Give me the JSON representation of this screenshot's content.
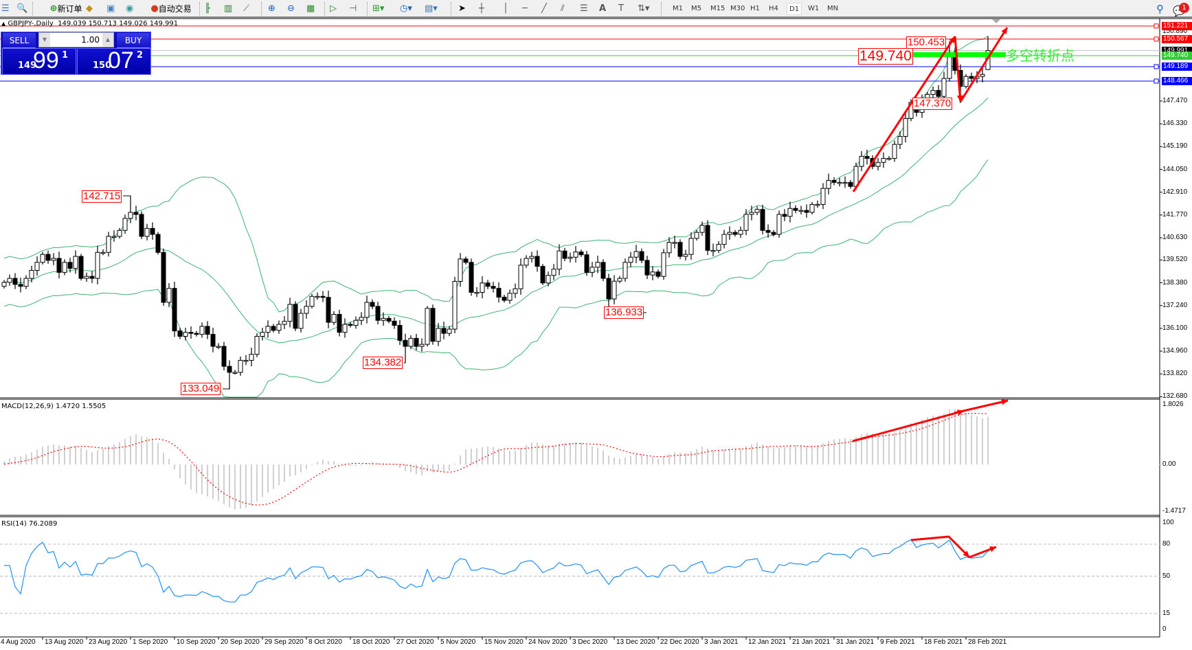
{
  "toolbar": {
    "new_order_label": "新订单",
    "auto_trading_label": "自动交易",
    "timeframes": [
      "M1",
      "M5",
      "M15",
      "M30",
      "H1",
      "H4",
      "D1",
      "W1",
      "MN"
    ],
    "active_timeframe": "D1",
    "notification_count": "1"
  },
  "chart": {
    "symbol_title": "GBPJPY-,Daily",
    "ohlc_text": "149.039 150.713 149.026 149.991"
  },
  "trade_panel": {
    "sell_label": "SELL",
    "buy_label": "BUY",
    "lot": "1.00",
    "sell_price": {
      "prefix": "149",
      "big": "99",
      "sup": "1"
    },
    "buy_price": {
      "prefix": "150",
      "big": "07",
      "sup": "2"
    }
  },
  "price_axis": {
    "ticks": [
      "147.470",
      "146.330",
      "145.190",
      "144.050",
      "142.910",
      "141.770",
      "140.630",
      "139.520",
      "138.380",
      "137.240",
      "136.100",
      "134.960",
      "133.820",
      "132.680"
    ],
    "top_tick": "150.890",
    "levels": [
      {
        "value": "151.221",
        "color": "#ff0000",
        "line": "#ff0000"
      },
      {
        "value": "150.567",
        "color": "#ff0000",
        "line": "#ff0000"
      },
      {
        "value": "149.991",
        "color": "#000000",
        "line": "#c0c0c0"
      },
      {
        "value": "149.740",
        "color": "#32cd32",
        "line": "#32cd32"
      },
      {
        "value": "149.189",
        "color": "#0000ff",
        "line": "#0000ff"
      },
      {
        "value": "148.466",
        "color": "#0000ff",
        "line": "#0000ff"
      }
    ]
  },
  "annotations": {
    "labels": [
      "142.715",
      "133.049",
      "134.382",
      "136.933",
      "150.453",
      "147.370",
      "149.740"
    ],
    "turning_point_text": "多空转折点",
    "arrow_color": "#ff0000",
    "zone_color": "#00ff00"
  },
  "macd": {
    "title": "MACD(12,26,9) 1.4720 1.5505",
    "ticks": [
      "1.8026",
      "0.00",
      "-1.4717"
    ],
    "range": [
      -1.4717,
      1.8026
    ]
  },
  "rsi": {
    "title": "RSI(14) 76.2089",
    "ticks": [
      "100",
      "80",
      "50",
      "15",
      "0"
    ],
    "levels": [
      80,
      50,
      15
    ]
  },
  "time_axis": {
    "labels": [
      "4 Aug 2020",
      "13 Aug 2020",
      "23 Aug 2020",
      "1 Sep 2020",
      "10 Sep 2020",
      "20 Sep 2020",
      "29 Sep 2020",
      "8 Oct 2020",
      "18 Oct 2020",
      "27 Oct 2020",
      "5 Nov 2020",
      "15 Nov 2020",
      "24 Nov 2020",
      "3 Dec 2020",
      "13 Dec 2020",
      "22 Dec 2020",
      "3 Jan 2021",
      "12 Jan 2021",
      "21 Jan 2021",
      "31 Jan 2021",
      "9 Feb 2021",
      "18 Feb 2021",
      "28 Feb 2021"
    ]
  },
  "chart_data": {
    "type": "candlestick",
    "symbol": "GBPJPY-",
    "timeframe": "Daily",
    "ylim": [
      132.68,
      151.5
    ],
    "indicators": [
      "Bollinger Bands(20,2)",
      "MACD(12,26,9)",
      "RSI(14)"
    ],
    "colors": {
      "bands": "#3cb371",
      "macd_hist": "#c0c0c0",
      "macd_signal": "#ff0000",
      "rsi": "#1e90ff"
    },
    "last_bar": {
      "open": 149.039,
      "high": 150.713,
      "low": 149.026,
      "close": 149.991
    },
    "closes": [
      138.4,
      138.6,
      138.3,
      138.2,
      138.6,
      139.0,
      139.4,
      139.8,
      139.5,
      139.6,
      138.9,
      139.4,
      139.1,
      139.7,
      138.6,
      138.7,
      138.6,
      139.9,
      139.9,
      140.7,
      140.7,
      141.0,
      141.6,
      141.9,
      141.8,
      140.7,
      141.1,
      140.8,
      139.9,
      137.4,
      138.1,
      135.97,
      135.7,
      135.9,
      135.85,
      135.8,
      136.2,
      135.8,
      135.2,
      135.2,
      134.2,
      133.9,
      133.9,
      134.5,
      134.5,
      134.8,
      135.7,
      135.9,
      136.2,
      136.0,
      136.3,
      136.45,
      137.3,
      136.1,
      136.85,
      137.2,
      137.7,
      137.7,
      137.65,
      136.4,
      136.8,
      135.9,
      136.3,
      136.25,
      136.5,
      136.65,
      137.4,
      137.2,
      136.5,
      136.6,
      136.46,
      136.25,
      135.5,
      135.2,
      135.6,
      135.2,
      135.3,
      137.1,
      135.45,
      136.1,
      135.85,
      136.06,
      138.45,
      139.57,
      139.4,
      137.9,
      137.9,
      138.37,
      138.2,
      138.1,
      137.66,
      137.5,
      137.85,
      138.08,
      139.26,
      139.6,
      139.7,
      139.2,
      138.37,
      138.75,
      139.06,
      139.97,
      139.6,
      139.66,
      139.92,
      139.78,
      138.9,
      139.16,
      139.4,
      138.6,
      137.57,
      138.46,
      138.6,
      139.4,
      139.66,
      139.94,
      139.5,
      138.77,
      138.92,
      138.7,
      139.88,
      140.4,
      140.4,
      139.7,
      139.8,
      140.6,
      140.9,
      141.25,
      140.0,
      140.0,
      140.3,
      140.8,
      140.9,
      140.8,
      141.0,
      141.8,
      141.9,
      142.05,
      141.0,
      140.9,
      140.8,
      141.8,
      141.7,
      142.1,
      142.0,
      142.0,
      141.9,
      142.3,
      142.3,
      143.1,
      143.5,
      143.4,
      143.4,
      143.4,
      143.2,
      144.2,
      144.7,
      144.6,
      144.2,
      144.4,
      144.6,
      144.6,
      145.3,
      145.7,
      146.6,
      147.4,
      146.9,
      147.5,
      147.8,
      148.0,
      147.7,
      148.6,
      149.9,
      149.0,
      148.2,
      148.7,
      148.6,
      148.7,
      148.8,
      149.991
    ],
    "marked_extremes": [
      {
        "type": "high",
        "value": 142.715
      },
      {
        "type": "low",
        "value": 133.049
      },
      {
        "type": "low",
        "value": 134.382
      },
      {
        "type": "low",
        "value": 136.933
      },
      {
        "type": "high",
        "value": 150.453
      },
      {
        "type": "low",
        "value": 147.37
      }
    ]
  }
}
